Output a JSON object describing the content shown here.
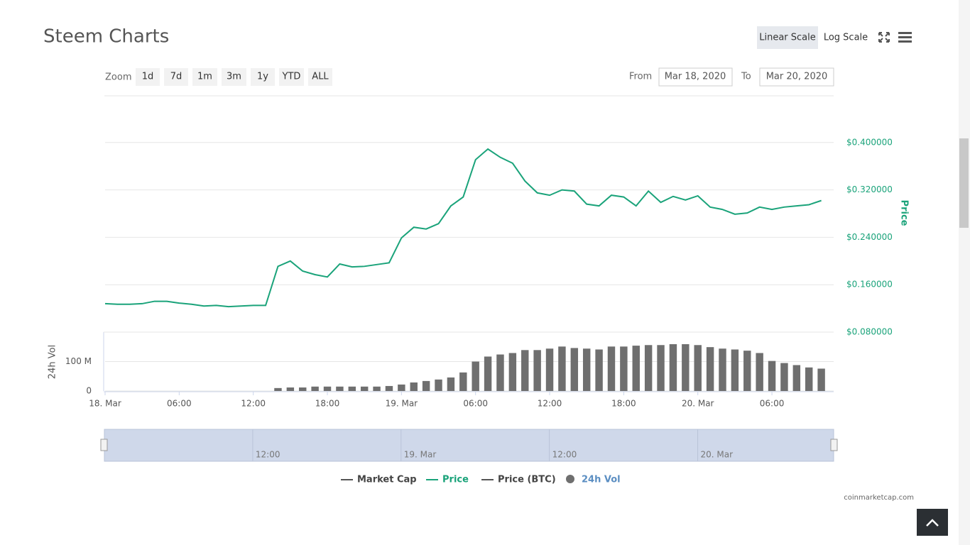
{
  "header": {
    "title": "Steem Charts",
    "scale_buttons": [
      "Linear Scale",
      "Log Scale"
    ]
  },
  "controls": {
    "zoom_label": "Zoom",
    "zoom_buttons": [
      "1d",
      "7d",
      "1m",
      "3m",
      "1y",
      "YTD",
      "ALL"
    ],
    "from_label": "From",
    "from_date": "Mar 18, 2020",
    "to_label": "To",
    "to_date": "Mar 20, 2020"
  },
  "chart_data": {
    "type": "line",
    "x": [
      0,
      1,
      2,
      3,
      4,
      5,
      6,
      7,
      8,
      9,
      10,
      11,
      12,
      13,
      14,
      15,
      16,
      17,
      18,
      19,
      20,
      21,
      22,
      23,
      24,
      25,
      26,
      27,
      28,
      29,
      30,
      31,
      32,
      33,
      34,
      35,
      36,
      37,
      38,
      39,
      40,
      41,
      42,
      43,
      44,
      45,
      46,
      47,
      48,
      49,
      50,
      51,
      52,
      53,
      54,
      55,
      56,
      57,
      58
    ],
    "xlim": [
      0,
      59
    ],
    "xticks": [
      {
        "value": 0,
        "label": "18. Mar"
      },
      {
        "value": 6,
        "label": "06:00"
      },
      {
        "value": 12,
        "label": "12:00"
      },
      {
        "value": 18,
        "label": "18:00"
      },
      {
        "value": 24,
        "label": "19. Mar"
      },
      {
        "value": 30,
        "label": "06:00"
      },
      {
        "value": 36,
        "label": "12:00"
      },
      {
        "value": 42,
        "label": "18:00"
      },
      {
        "value": 48,
        "label": "20. Mar"
      },
      {
        "value": 54,
        "label": "06:00"
      }
    ],
    "ylabel": "Price",
    "ylim": [
      0.08,
      0.48
    ],
    "yticks": [
      {
        "value": 0.08,
        "label": "$0.080000"
      },
      {
        "value": 0.16,
        "label": "$0.160000"
      },
      {
        "value": 0.24,
        "label": "$0.240000"
      },
      {
        "value": 0.32,
        "label": "$0.320000"
      },
      {
        "value": 0.4,
        "label": "$0.400000"
      }
    ],
    "y2label": "24h Vol",
    "y2lim": [
      0,
      200000000
    ],
    "y2ticks": [
      0,
      {
        "value": 100000000,
        "label": "100 M"
      }
    ],
    "grid": true,
    "series": [
      {
        "name": "Price",
        "type": "line",
        "color": "#1aa37a",
        "values": [
          0.128,
          0.127,
          0.127,
          0.128,
          0.132,
          0.132,
          0.129,
          0.127,
          0.124,
          0.125,
          0.123,
          0.124,
          0.125,
          0.125,
          0.191,
          0.2,
          0.183,
          0.177,
          0.173,
          0.195,
          0.19,
          0.191,
          0.194,
          0.197,
          0.239,
          0.257,
          0.254,
          0.263,
          0.293,
          0.308,
          0.371,
          0.389,
          0.375,
          0.365,
          0.335,
          0.315,
          0.311,
          0.32,
          0.318,
          0.296,
          0.293,
          0.311,
          0.308,
          0.293,
          0.318,
          0.299,
          0.309,
          0.303,
          0.31,
          0.291,
          0.287,
          0.279,
          0.281,
          0.291,
          0.287,
          0.291,
          0.293,
          0.295,
          0.302
        ]
      },
      {
        "name": "24h Vol",
        "type": "bar",
        "axis": "y2",
        "color": "#6f6f6f",
        "values": [
          0,
          0,
          0,
          0,
          0,
          0,
          0,
          0,
          0,
          0,
          0,
          0,
          0,
          0,
          10000000,
          12000000,
          12000000,
          15000000,
          15000000,
          15000000,
          15000000,
          15000000,
          15000000,
          17000000,
          22000000,
          29000000,
          34000000,
          39000000,
          46000000,
          63000000,
          100000000,
          117000000,
          124000000,
          129000000,
          139000000,
          139000000,
          144000000,
          151000000,
          146000000,
          144000000,
          141000000,
          151000000,
          151000000,
          154000000,
          156000000,
          156000000,
          159000000,
          159000000,
          156000000,
          149000000,
          144000000,
          141000000,
          137000000,
          129000000,
          102000000,
          95000000,
          88000000,
          80000000,
          76000000
        ]
      }
    ],
    "legend": [
      {
        "name": "Market Cap",
        "color": "#555555",
        "marker": "line",
        "active": false
      },
      {
        "name": "Price",
        "color": "#1aa37a",
        "marker": "line",
        "active": true
      },
      {
        "name": "Price (BTC)",
        "color": "#555555",
        "marker": "line",
        "active": false
      },
      {
        "name": "24h Vol",
        "color": "#6f6f6f",
        "marker": "circle",
        "active": true
      }
    ],
    "navigator": {
      "xticks": [
        {
          "value": 12,
          "label": "12:00"
        },
        {
          "value": 24,
          "label": "19. Mar"
        },
        {
          "value": 36,
          "label": "12:00"
        },
        {
          "value": 48,
          "label": "20. Mar"
        }
      ]
    },
    "credit": "coinmarketcap.com"
  }
}
